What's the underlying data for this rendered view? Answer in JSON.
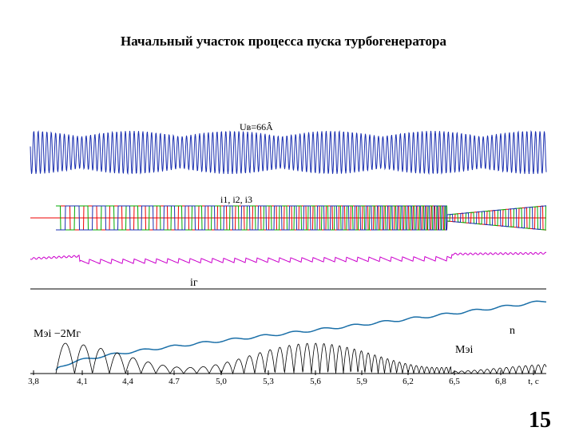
{
  "header": {
    "title": "Начальный участок процесса пуска турбогенератора"
  },
  "figure": {
    "labels": {
      "voltage": "Uв=66Â",
      "currents": "i1, i2, i3",
      "field_current": "iг",
      "torque_diff": "Mэi −2Mг",
      "speed": "n",
      "torque": "Mэi"
    },
    "time_axis": [
      "3,8",
      "4,1",
      "4,4",
      "4.7",
      "5,0",
      "5,3",
      "5,6",
      "5,9",
      "6,2",
      "6,5",
      "6,8",
      "t, c"
    ]
  },
  "footer": {
    "page_number": "15"
  }
}
